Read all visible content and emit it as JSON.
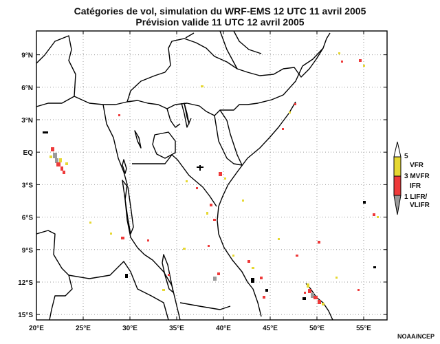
{
  "title_line1": "Catégories de vol, simulation du WRF-EMS 12 UTC 11 avril 2005",
  "title_line2": "Prévision valide 11 UTC 12 avril 2005",
  "credit": "NOAA/NCEP",
  "map": {
    "lon_range": [
      20,
      57.5
    ],
    "lat_range": [
      -15.5,
      11.2
    ],
    "lon_ticks": [
      {
        "value": 20,
        "label": "20°E"
      },
      {
        "value": 25,
        "label": "25°E"
      },
      {
        "value": 30,
        "label": "30°E"
      },
      {
        "value": 35,
        "label": "35°E"
      },
      {
        "value": 40,
        "label": "40°E"
      },
      {
        "value": 45,
        "label": "45°E"
      },
      {
        "value": 50,
        "label": "50°E"
      },
      {
        "value": 55,
        "label": "55°E"
      }
    ],
    "lat_ticks": [
      {
        "value": 9,
        "label": "9°N"
      },
      {
        "value": 6,
        "label": "6°N"
      },
      {
        "value": 3,
        "label": "3°N"
      },
      {
        "value": 0,
        "label": "EQ"
      },
      {
        "value": -3,
        "label": "3°S"
      },
      {
        "value": -6,
        "label": "6°S"
      },
      {
        "value": -9,
        "label": "9°S"
      },
      {
        "value": -12,
        "label": "12°S"
      },
      {
        "value": -15,
        "label": "15°S"
      }
    ],
    "grid": "dotted"
  },
  "legend": {
    "colors": {
      "vfr": "#e6d832",
      "mvfr": "#ee3a3a",
      "lifr": "#9a9a9a"
    },
    "items": [
      {
        "key": "top",
        "label": "5"
      },
      {
        "key": "vfr",
        "label": "VFR"
      },
      {
        "key": "mvfr",
        "label": "3 MVFR"
      },
      {
        "key": "ifr",
        "label": "IFR"
      },
      {
        "key": "lifr",
        "label": "1 LIFR/"
      },
      {
        "key": "vlifr",
        "label": "VLIFR"
      }
    ]
  }
}
